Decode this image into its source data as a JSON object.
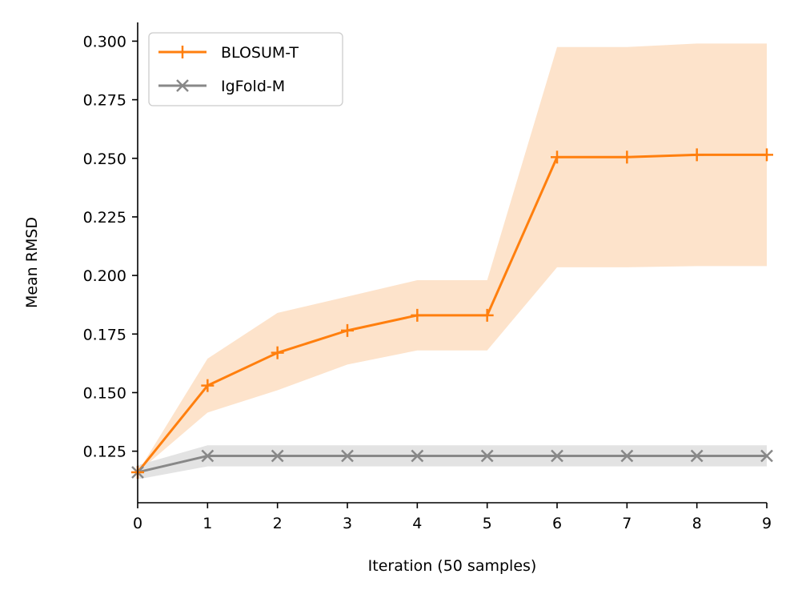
{
  "chart_data": {
    "type": "line",
    "title": "",
    "xlabel": "Iteration (50 samples)",
    "ylabel": "Mean RMSD",
    "x": [
      0,
      1,
      2,
      3,
      4,
      5,
      6,
      7,
      8,
      9
    ],
    "xlim": [
      0,
      9
    ],
    "ylim": [
      0.103,
      0.308
    ],
    "xticks": [
      "0",
      "1",
      "2",
      "3",
      "4",
      "5",
      "6",
      "7",
      "8",
      "9"
    ],
    "yticks": [
      "0.125",
      "0.150",
      "0.175",
      "0.200",
      "0.225",
      "0.250",
      "0.275",
      "0.300"
    ],
    "yticks_values": [
      0.125,
      0.15,
      0.175,
      0.2,
      0.225,
      0.25,
      0.275,
      0.3
    ],
    "grid": false,
    "legend_position": "top-left",
    "series": [
      {
        "name": "BLOSUM-T",
        "color": "#ff7f0e",
        "band_color": "#fde3cb",
        "marker": "plus",
        "values": [
          0.116,
          0.153,
          0.167,
          0.1765,
          0.183,
          0.183,
          0.2505,
          0.2505,
          0.2515,
          0.2515
        ],
        "lower": [
          0.116,
          0.1415,
          0.151,
          0.162,
          0.168,
          0.168,
          0.2035,
          0.2035,
          0.204,
          0.204
        ],
        "upper": [
          0.116,
          0.1645,
          0.184,
          0.191,
          0.198,
          0.198,
          0.2975,
          0.2975,
          0.299,
          0.299
        ]
      },
      {
        "name": "IgFold-M",
        "color": "#888888",
        "band_color": "#e3e3e3",
        "marker": "x",
        "values": [
          0.116,
          0.123,
          0.123,
          0.123,
          0.123,
          0.123,
          0.123,
          0.123,
          0.123,
          0.123
        ],
        "lower": [
          0.113,
          0.1185,
          0.1185,
          0.1185,
          0.1185,
          0.1185,
          0.1185,
          0.1185,
          0.1185,
          0.1185
        ],
        "upper": [
          0.119,
          0.1275,
          0.1275,
          0.1275,
          0.1275,
          0.1275,
          0.1275,
          0.1275,
          0.1275,
          0.1275
        ]
      }
    ]
  }
}
